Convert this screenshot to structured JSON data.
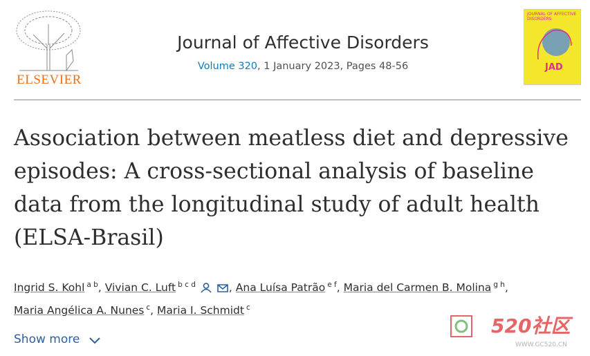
{
  "header": {
    "publisher": "ELSEVIER",
    "journal": "Journal of Affective Disorders",
    "volume": "Volume 320",
    "details": ", 1 January 2023, Pages 48-56",
    "cover_title": "JOURNAL OF AFFECTIVE DISORDERS",
    "cover_logo": "JAD"
  },
  "article": {
    "title": "Association between meatless diet and depressive episodes: A cross-sectional analysis of baseline data from the longitudinal study of adult health (ELSA-Brasil)",
    "author_separator": ",",
    "authors": [
      {
        "name": "Ingrid S. Kohl",
        "affiliations": "a b"
      },
      {
        "name": "Vivian C. Luft",
        "affiliations": "b c d",
        "contact": true
      },
      {
        "name": "Ana Luísa Patrão",
        "affiliations": "e f"
      },
      {
        "name": "Maria del Carmen B. Molina",
        "affiliations": "g h"
      },
      {
        "name": "Maria Angélica A. Nunes",
        "affiliations": "c"
      },
      {
        "name": "Maria I. Schmidt",
        "affiliations": "c"
      }
    ],
    "show_more": "Show more"
  },
  "watermark": {
    "text": "520社区",
    "url": "WWW.GC520.CN"
  }
}
